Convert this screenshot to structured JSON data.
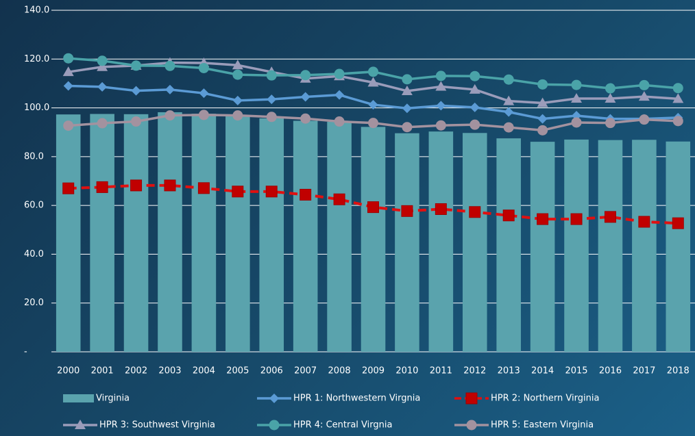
{
  "chart_data": {
    "type": "combo",
    "categories": [
      "2000",
      "2001",
      "2002",
      "2003",
      "2004",
      "2005",
      "2006",
      "2007",
      "2008",
      "2009",
      "2010",
      "2011",
      "2012",
      "2013",
      "2014",
      "2015",
      "2016",
      "2017",
      "2018"
    ],
    "ylim": [
      0,
      140
    ],
    "yticks": [
      {
        "value": 0,
        "label": "-"
      },
      {
        "value": 20,
        "label": "20.0"
      },
      {
        "value": 40,
        "label": "40.0"
      },
      {
        "value": 60,
        "label": "60.0"
      },
      {
        "value": 80,
        "label": "80.0"
      },
      {
        "value": 100,
        "label": "100.0"
      },
      {
        "value": 120,
        "label": "120.0"
      },
      {
        "value": 140,
        "label": "140.0"
      }
    ],
    "grid": true,
    "legend": "bottom",
    "series": [
      {
        "name": "Virginia",
        "kind": "bar",
        "color": "#5aa3ad",
        "values": [
          97.3,
          97.5,
          97.4,
          98.2,
          97.6,
          96.5,
          95.7,
          94.7,
          94.3,
          92.2,
          89.6,
          90.3,
          89.7,
          87.5,
          86.1,
          87.0,
          86.8,
          86.9,
          86.2
        ]
      },
      {
        "name": "HPR 1: Northwestern Virgnia",
        "kind": "line",
        "marker": "diamond",
        "color": "#5b9bd5",
        "values": [
          109,
          108.6,
          107,
          107.5,
          106,
          103,
          103.5,
          104.5,
          105.3,
          101.3,
          99.8,
          100.9,
          100.2,
          98.3,
          95.5,
          96.8,
          95.5,
          95.5,
          96
        ]
      },
      {
        "name": "HPR 2: Northern Virginia",
        "kind": "line",
        "marker": "square",
        "dash": true,
        "color": "#e01010",
        "values": [
          67,
          67.5,
          68.2,
          68.2,
          67.1,
          65.7,
          65.7,
          64.4,
          62.5,
          59.3,
          57.7,
          58.5,
          57.3,
          55.9,
          54.4,
          54.4,
          55.3,
          53.3,
          52.7
        ]
      },
      {
        "name": "HPR 3: Southwest Virginia",
        "kind": "line",
        "marker": "triangle",
        "color": "#9a9cba",
        "values": [
          114.7,
          116.8,
          117.3,
          118.5,
          118.4,
          117.5,
          114.7,
          112,
          113,
          110.4,
          106.9,
          108.7,
          107.5,
          102.8,
          102,
          103.8,
          103.8,
          104.6,
          103.7
        ]
      },
      {
        "name": "HPR 4: Central Virgnia",
        "kind": "line",
        "marker": "circle",
        "color": "#4aa3a8",
        "values": [
          120.3,
          119.3,
          117.3,
          117.2,
          116.3,
          113.6,
          113.3,
          113.4,
          113.9,
          114.8,
          111.7,
          113.1,
          113,
          111.6,
          109.6,
          109.4,
          108,
          109.3,
          108.1
        ]
      },
      {
        "name": "HPR 5: Eastern Virginia",
        "kind": "line",
        "marker": "circle",
        "color": "#a3929f",
        "values": [
          92.7,
          93.7,
          94.4,
          96.9,
          97.1,
          96.9,
          96.3,
          95.6,
          94.4,
          93.8,
          92.1,
          92.8,
          93.1,
          92,
          90.8,
          94,
          93.8,
          95.2,
          94.6
        ]
      }
    ]
  }
}
